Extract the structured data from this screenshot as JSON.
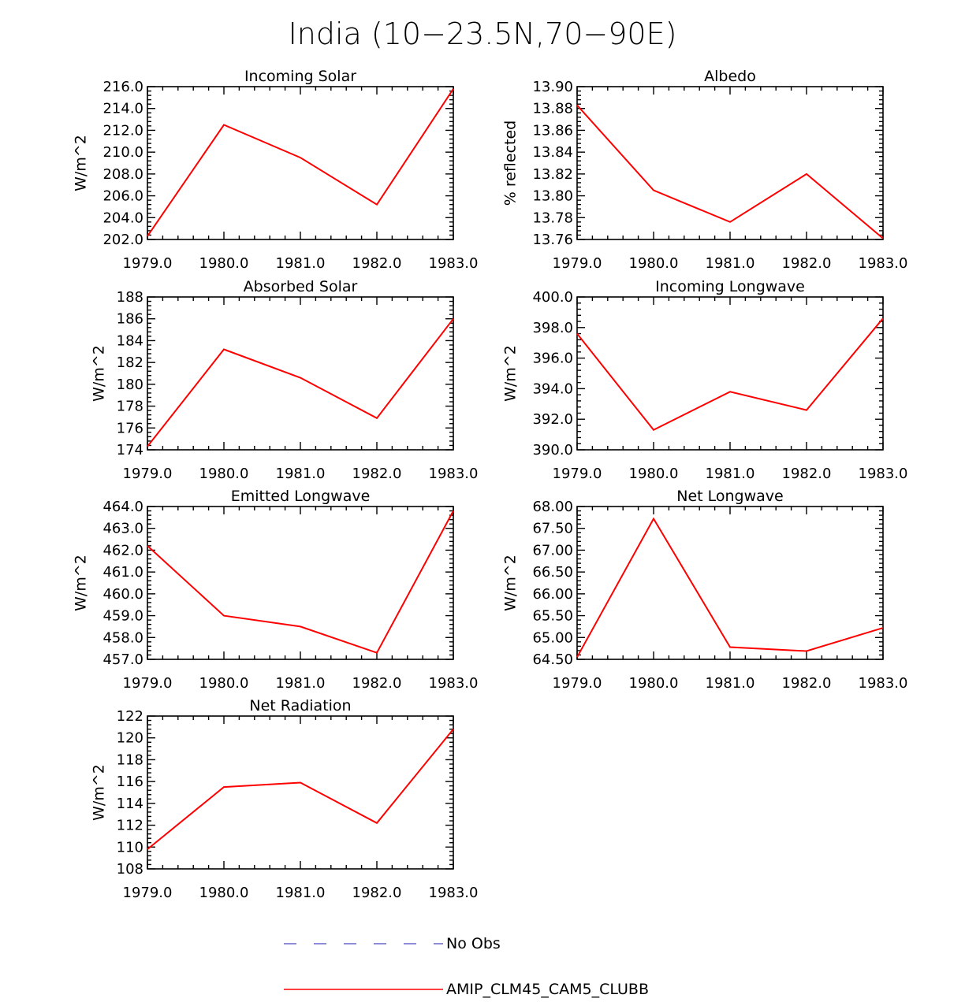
{
  "figure_title": "India (10−23.5N,70−90E)",
  "colors": {
    "model": "#ff0000",
    "obs": "#6666cc",
    "axis": "#000000"
  },
  "legend": {
    "items": [
      {
        "label": "No Obs",
        "style": "dashed",
        "color": "#6666cc"
      },
      {
        "label": "AMIP_CLM45_CAM5_CLUBB",
        "style": "solid",
        "color": "#ff0000"
      }
    ]
  },
  "chart_data": [
    {
      "type": "line",
      "title": "Incoming Solar",
      "xlabel": "",
      "ylabel": "W/m^2",
      "x": [
        1979,
        1980,
        1981,
        1982,
        1983
      ],
      "xticks": [
        "1979.0",
        "1980.0",
        "1981.0",
        "1982.0",
        "1983.0"
      ],
      "ylim": [
        202.0,
        216.0
      ],
      "yticks": [
        "202.0",
        "204.0",
        "206.0",
        "208.0",
        "210.0",
        "212.0",
        "214.0",
        "216.0"
      ],
      "series": [
        {
          "name": "AMIP_CLM45_CAM5_CLUBB",
          "values": [
            202.3,
            212.5,
            209.5,
            205.2,
            215.8
          ]
        }
      ]
    },
    {
      "type": "line",
      "title": "Albedo",
      "xlabel": "",
      "ylabel": "% reflected",
      "x": [
        1979,
        1980,
        1981,
        1982,
        1983
      ],
      "xticks": [
        "1979.0",
        "1980.0",
        "1981.0",
        "1982.0",
        "1983.0"
      ],
      "ylim": [
        13.76,
        13.9
      ],
      "yticks": [
        "13.76",
        "13.78",
        "13.80",
        "13.82",
        "13.84",
        "13.86",
        "13.88",
        "13.90"
      ],
      "series": [
        {
          "name": "AMIP_CLM45_CAM5_CLUBB",
          "values": [
            13.883,
            13.805,
            13.776,
            13.82,
            13.761
          ]
        }
      ]
    },
    {
      "type": "line",
      "title": "Absorbed Solar",
      "xlabel": "",
      "ylabel": "W/m^2",
      "x": [
        1979,
        1980,
        1981,
        1982,
        1983
      ],
      "xticks": [
        "1979.0",
        "1980.0",
        "1981.0",
        "1982.0",
        "1983.0"
      ],
      "ylim": [
        174,
        188
      ],
      "yticks": [
        "174",
        "176",
        "178",
        "180",
        "182",
        "184",
        "186",
        "188"
      ],
      "series": [
        {
          "name": "AMIP_CLM45_CAM5_CLUBB",
          "values": [
            174.3,
            183.2,
            180.6,
            176.9,
            186.0
          ]
        }
      ]
    },
    {
      "type": "line",
      "title": "Incoming Longwave",
      "xlabel": "",
      "ylabel": "W/m^2",
      "x": [
        1979,
        1980,
        1981,
        1982,
        1983
      ],
      "xticks": [
        "1979.0",
        "1980.0",
        "1981.0",
        "1982.0",
        "1983.0"
      ],
      "ylim": [
        390.0,
        400.0
      ],
      "yticks": [
        "390.0",
        "392.0",
        "394.0",
        "396.0",
        "398.0",
        "400.0"
      ],
      "series": [
        {
          "name": "AMIP_CLM45_CAM5_CLUBB",
          "values": [
            397.6,
            391.3,
            393.8,
            392.6,
            398.6
          ]
        }
      ]
    },
    {
      "type": "line",
      "title": "Emitted Longwave",
      "xlabel": "",
      "ylabel": "W/m^2",
      "x": [
        1979,
        1980,
        1981,
        1982,
        1983
      ],
      "xticks": [
        "1979.0",
        "1980.0",
        "1981.0",
        "1982.0",
        "1983.0"
      ],
      "ylim": [
        457.0,
        464.0
      ],
      "yticks": [
        "457.0",
        "458.0",
        "459.0",
        "460.0",
        "461.0",
        "462.0",
        "463.0",
        "464.0"
      ],
      "series": [
        {
          "name": "AMIP_CLM45_CAM5_CLUBB",
          "values": [
            462.2,
            459.0,
            458.5,
            457.3,
            463.8
          ]
        }
      ]
    },
    {
      "type": "line",
      "title": "Net Longwave",
      "xlabel": "",
      "ylabel": "W/m^2",
      "x": [
        1979,
        1980,
        1981,
        1982,
        1983
      ],
      "xticks": [
        "1979.0",
        "1980.0",
        "1981.0",
        "1982.0",
        "1983.0"
      ],
      "ylim": [
        64.5,
        68.0
      ],
      "yticks": [
        "64.50",
        "65.00",
        "65.50",
        "66.00",
        "66.50",
        "67.00",
        "67.50",
        "68.00"
      ],
      "series": [
        {
          "name": "AMIP_CLM45_CAM5_CLUBB",
          "values": [
            64.55,
            67.72,
            64.78,
            64.69,
            65.22
          ]
        }
      ]
    },
    {
      "type": "line",
      "title": "Net Radiation",
      "xlabel": "",
      "ylabel": "W/m^2",
      "x": [
        1979,
        1980,
        1981,
        1982,
        1983
      ],
      "xticks": [
        "1979.0",
        "1980.0",
        "1981.0",
        "1982.0",
        "1983.0"
      ],
      "ylim": [
        108,
        122
      ],
      "yticks": [
        "108",
        "110",
        "112",
        "114",
        "116",
        "118",
        "120",
        "122"
      ],
      "series": [
        {
          "name": "AMIP_CLM45_CAM5_CLUBB",
          "values": [
            109.8,
            115.5,
            115.9,
            112.2,
            120.8
          ]
        }
      ]
    }
  ]
}
